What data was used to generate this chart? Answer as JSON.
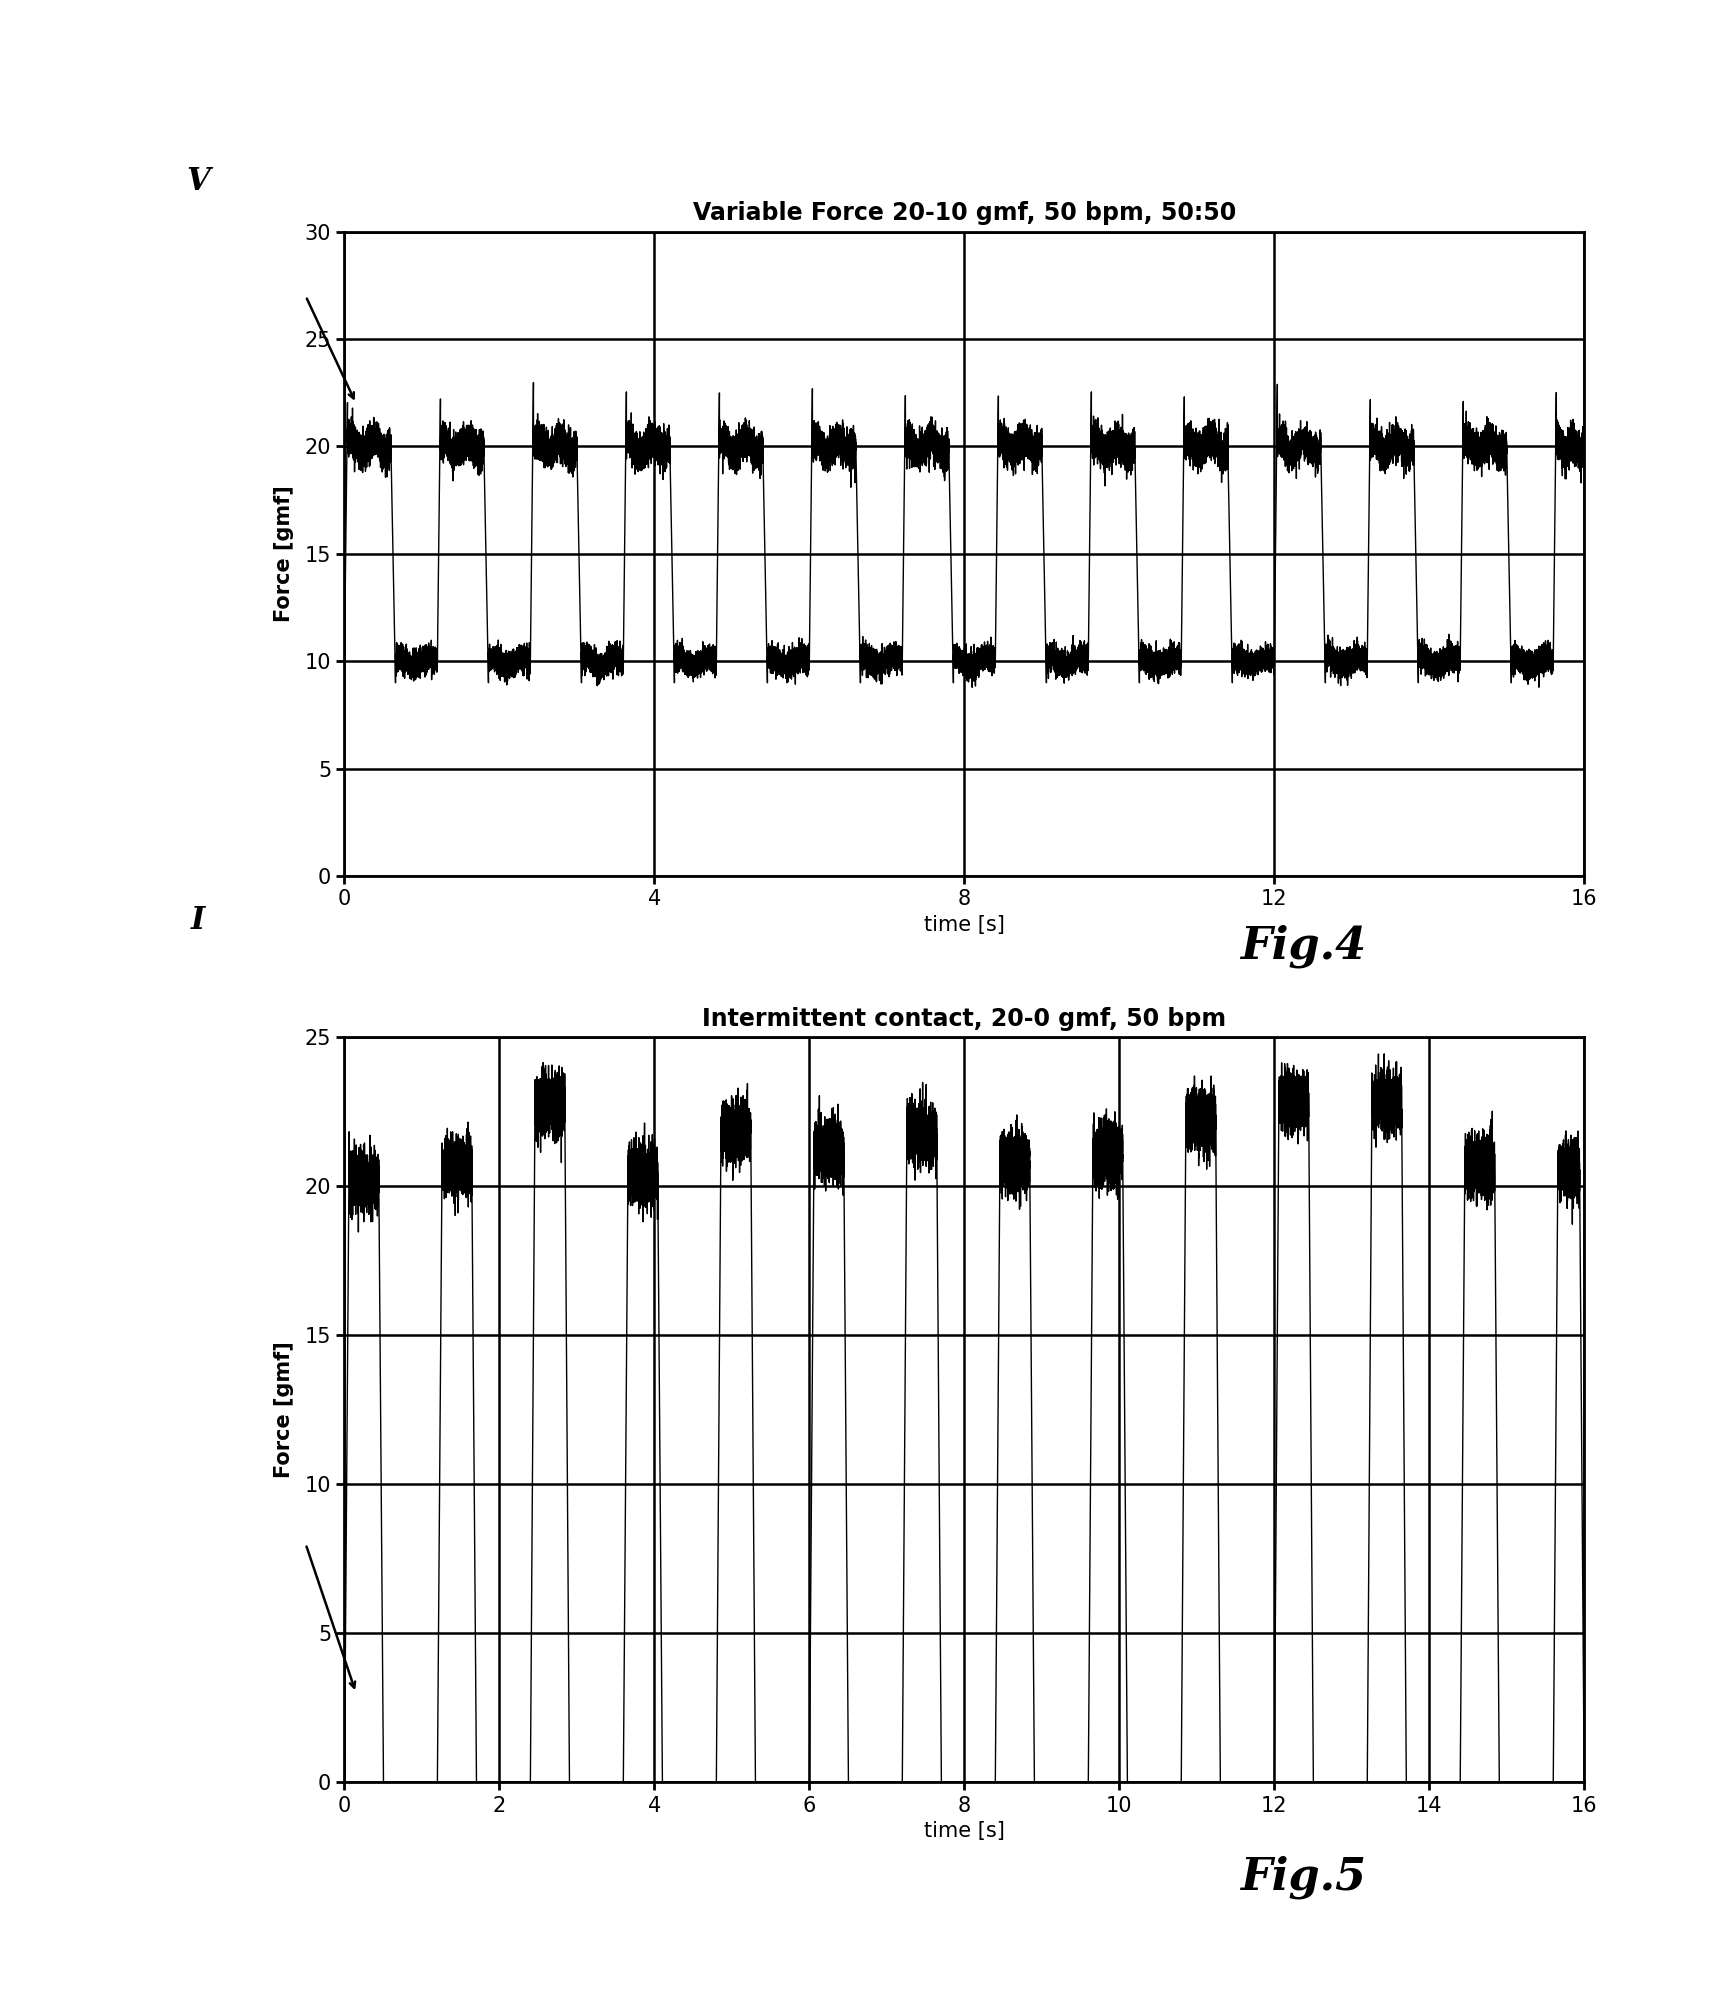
{
  "fig4": {
    "title": "Variable Force 20-10 gmf, 50 bpm, 50:50",
    "xlabel": "time [s]",
    "ylabel": "Force [gmf]",
    "fig_label": "Fig.4",
    "xlim": [
      0,
      16
    ],
    "ylim": [
      0,
      30
    ],
    "yticks": [
      0,
      5,
      10,
      15,
      20,
      25,
      30
    ],
    "xticks": [
      0,
      4,
      8,
      12,
      16
    ],
    "bpm": 50,
    "duty_cycle": 0.5,
    "f_high": 20,
    "f_low": 10,
    "duration": 16,
    "label": "V"
  },
  "fig5": {
    "title": "Intermittent contact, 20-0 gmf, 50 bpm",
    "xlabel": "time [s]",
    "ylabel": "Force [gmf]",
    "fig_label": "Fig.5",
    "xlim": [
      0,
      16
    ],
    "ylim": [
      0,
      25
    ],
    "yticks": [
      0,
      5,
      10,
      15,
      20,
      25
    ],
    "xticks": [
      0,
      2,
      4,
      6,
      8,
      10,
      12,
      14,
      16
    ],
    "bpm": 50,
    "duty_cycle": 0.5,
    "f_high": 20,
    "f_low": 0,
    "duration": 16,
    "label": "I"
  },
  "line_color": "#000000",
  "line_width": 1.0,
  "grid_color": "#000000",
  "grid_linewidth": 1.8,
  "background_color": "#ffffff",
  "title_fontsize": 17,
  "axis_label_fontsize": 15,
  "tick_fontsize": 15,
  "fig_label_fontsize": 32
}
